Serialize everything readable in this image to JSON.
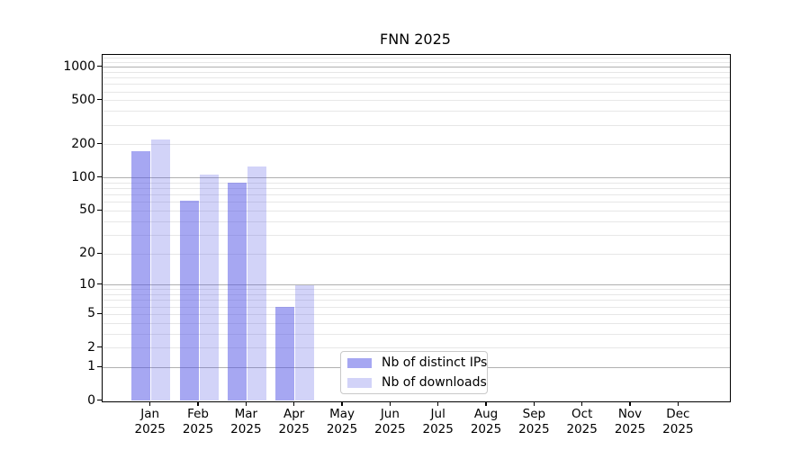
{
  "title": "FNN 2025",
  "chart_data": {
    "type": "bar",
    "title": "FNN 2025",
    "x": {
      "months": [
        "Jan",
        "Feb",
        "Mar",
        "Apr",
        "May",
        "Jun",
        "Jul",
        "Aug",
        "Sep",
        "Oct",
        "Nov",
        "Dec"
      ],
      "year": "2025"
    },
    "series": [
      {
        "name": "Nb of distinct IPs",
        "fill": "rgba(77,79,229,0.5)",
        "values": [
          175,
          62,
          90,
          6,
          0,
          0,
          0,
          0,
          0,
          0,
          0,
          0
        ]
      },
      {
        "name": "Nb of downloads",
        "fill": "rgba(77,79,229,0.25)",
        "values": [
          225,
          107,
          128,
          10,
          0,
          0,
          0,
          0,
          0,
          0,
          0,
          0
        ]
      }
    ],
    "yscale": "log1p",
    "yticks": [
      0,
      1,
      2,
      5,
      10,
      20,
      50,
      100,
      200,
      500,
      1000
    ],
    "ylim": [
      0,
      1300
    ],
    "xlabel": "",
    "ylabel": "",
    "grid": {
      "major_values": [
        1,
        10,
        100,
        1000
      ],
      "minor_values": [
        2,
        3,
        4,
        5,
        6,
        7,
        8,
        9,
        20,
        30,
        40,
        50,
        60,
        70,
        80,
        90,
        200,
        300,
        400,
        500,
        600,
        700,
        800,
        900,
        1100,
        1200
      ],
      "major_color": "#b0b0b0",
      "minor_color": "#e7e7e7",
      "on": true
    },
    "legend_position": "lower center"
  },
  "legend": {
    "border_color": "#c9c9c9"
  },
  "colors": {
    "bar_base": "#4d4fe5",
    "spine": "#000000",
    "background": "#ffffff"
  }
}
